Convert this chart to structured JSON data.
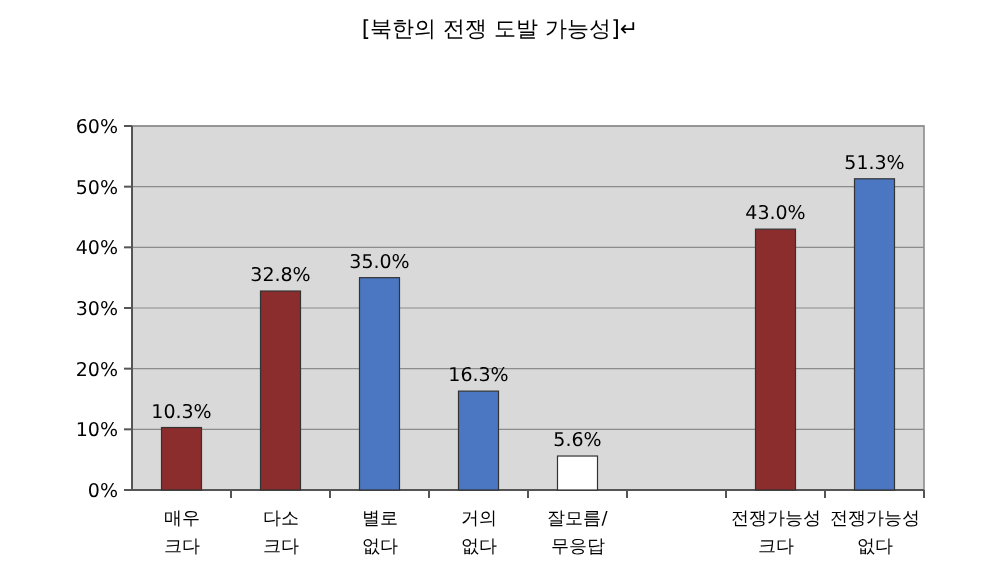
{
  "chart_data": {
    "type": "bar",
    "title": "[북한의 전쟁 도발 가능성]↵",
    "categories": [
      "매우 크다",
      "다소 크다",
      "별로 없다",
      "거의 없다",
      "잘모름/무응답",
      null,
      "전쟁가능성 크다",
      "전쟁가능성 없다"
    ],
    "values": [
      10.3,
      32.8,
      35.0,
      16.3,
      5.6,
      null,
      43.0,
      51.3
    ],
    "colors": [
      "#8b2d2d",
      "#8b2d2d",
      "#4a76c2",
      "#4a76c2",
      "#ffffff",
      null,
      "#8b2d2d",
      "#4a76c2"
    ],
    "value_labels": [
      "10.3%",
      "32.8%",
      "35.0%",
      "16.3%",
      "5.6%",
      null,
      "43.0%",
      "51.3%"
    ],
    "ylim": [
      0,
      60
    ],
    "yticks": [
      {
        "value": 0,
        "label": "0%"
      },
      {
        "value": 10,
        "label": "10%"
      },
      {
        "value": 20,
        "label": "20%"
      },
      {
        "value": 30,
        "label": "30%"
      },
      {
        "value": 40,
        "label": "40%"
      },
      {
        "value": 50,
        "label": "50%"
      },
      {
        "value": 60,
        "label": "60%"
      }
    ],
    "grid": "y"
  }
}
